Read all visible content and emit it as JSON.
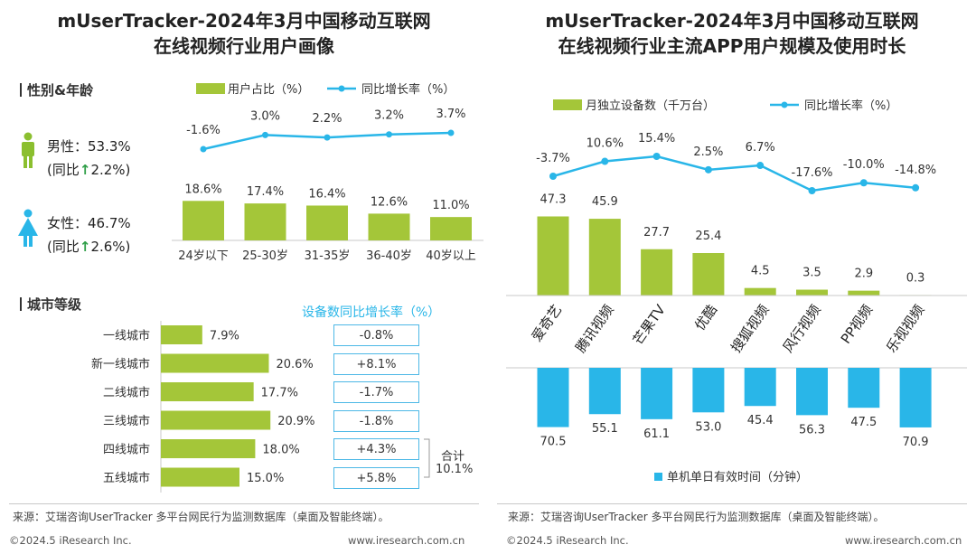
{
  "colors": {
    "green": "#a4c639",
    "blue": "#29b6e8",
    "line": "#29b6e8",
    "person_green": "#8bbf2f",
    "person_blue": "#29b6e8"
  },
  "left": {
    "title_line1": "mUserTracker-2024年3月中国移动互联网",
    "title_line2": "在线视频行业用户画像",
    "section_gender_age": "性别&年龄",
    "male_label": "男性：53.3%",
    "male_yoy_prefix": "(同比",
    "male_yoy_value": "2.2%)",
    "female_label": "女性：46.7%",
    "female_yoy_prefix": "(同比",
    "female_yoy_value": "2.6%)",
    "male_icon": "male-person-icon",
    "female_icon": "female-person-icon",
    "up_arrow": "↑",
    "section_city": "城市等级",
    "city_change_title": "设备数同比增长率（%）",
    "total_label": "合计",
    "total_value": "10.1%",
    "source": "来源：艾瑞咨询UserTracker 多平台网民行为监测数据库（桌面及智能终端）。",
    "copyright": "©2024.5 iResearch Inc.",
    "website": "www.iresearch.com.cn"
  },
  "right": {
    "title_line1": "mUserTracker-2024年3月中国移动互联网",
    "title_line2": "在线视频行业主流APP用户规模及使用时长",
    "source": "来源：艾瑞咨询UserTracker 多平台网民行为监测数据库（桌面及智能终端）。",
    "copyright": "©2024.5 iResearch Inc.",
    "website": "www.iresearch.com.cn"
  },
  "chart_data": [
    {
      "type": "bar",
      "id": "age",
      "categories": [
        "24岁以下",
        "25-30岁",
        "31-35岁",
        "36-40岁",
        "40岁以上"
      ],
      "series": [
        {
          "name": "用户占比（%）",
          "values": [
            18.6,
            17.4,
            16.4,
            12.6,
            11.0
          ],
          "labels": [
            "18.6%",
            "17.4%",
            "16.4%",
            "12.6%",
            "11.0%"
          ]
        },
        {
          "name": "同比增长率（%）",
          "kind": "line",
          "values": [
            -1.6,
            3.0,
            2.2,
            3.2,
            3.7
          ],
          "labels": [
            "-1.6%",
            "3.0%",
            "2.2%",
            "3.2%",
            "3.7%"
          ]
        }
      ]
    },
    {
      "type": "bar",
      "id": "city",
      "orientation": "horizontal",
      "categories": [
        "一线城市",
        "新一线城市",
        "二线城市",
        "三线城市",
        "四线城市",
        "五线城市"
      ],
      "values": [
        7.9,
        20.6,
        17.7,
        20.9,
        18.0,
        15.0
      ],
      "labels": [
        "7.9%",
        "20.6%",
        "17.7%",
        "20.9%",
        "18.0%",
        "15.0%"
      ],
      "device_yoy": [
        "-0.8%",
        "+8.1%",
        "-1.7%",
        "-1.8%",
        "+4.3%",
        "+5.8%"
      ]
    },
    {
      "type": "bar",
      "id": "apps",
      "categories": [
        "爱奇艺",
        "腾讯视频",
        "芒果TV",
        "优酷",
        "搜狐视频",
        "风行视频",
        "PP视频",
        "乐视视频"
      ],
      "series": [
        {
          "name": "月独立设备数（千万台）",
          "values": [
            47.3,
            45.9,
            27.7,
            25.4,
            4.5,
            3.5,
            2.9,
            0.3
          ],
          "labels": [
            "47.3",
            "45.9",
            "27.7",
            "25.4",
            "4.5",
            "3.5",
            "2.9",
            "0.3"
          ]
        },
        {
          "name": "同比增长率（%）",
          "kind": "line",
          "values": [
            -3.7,
            10.6,
            15.4,
            2.5,
            6.7,
            -17.6,
            -10.0,
            -14.8
          ],
          "labels": [
            "-3.7%",
            "10.6%",
            "15.4%",
            "2.5%",
            "6.7%",
            "-17.6%",
            "-10.0%",
            "-14.8%"
          ]
        },
        {
          "name": "单机单日有效时间（分钟）",
          "values": [
            70.5,
            55.1,
            61.1,
            53.0,
            45.4,
            56.3,
            47.5,
            70.9
          ],
          "labels": [
            "70.5",
            "55.1",
            "61.1",
            "53.0",
            "45.4",
            "56.3",
            "47.5",
            "70.9"
          ]
        }
      ]
    }
  ]
}
